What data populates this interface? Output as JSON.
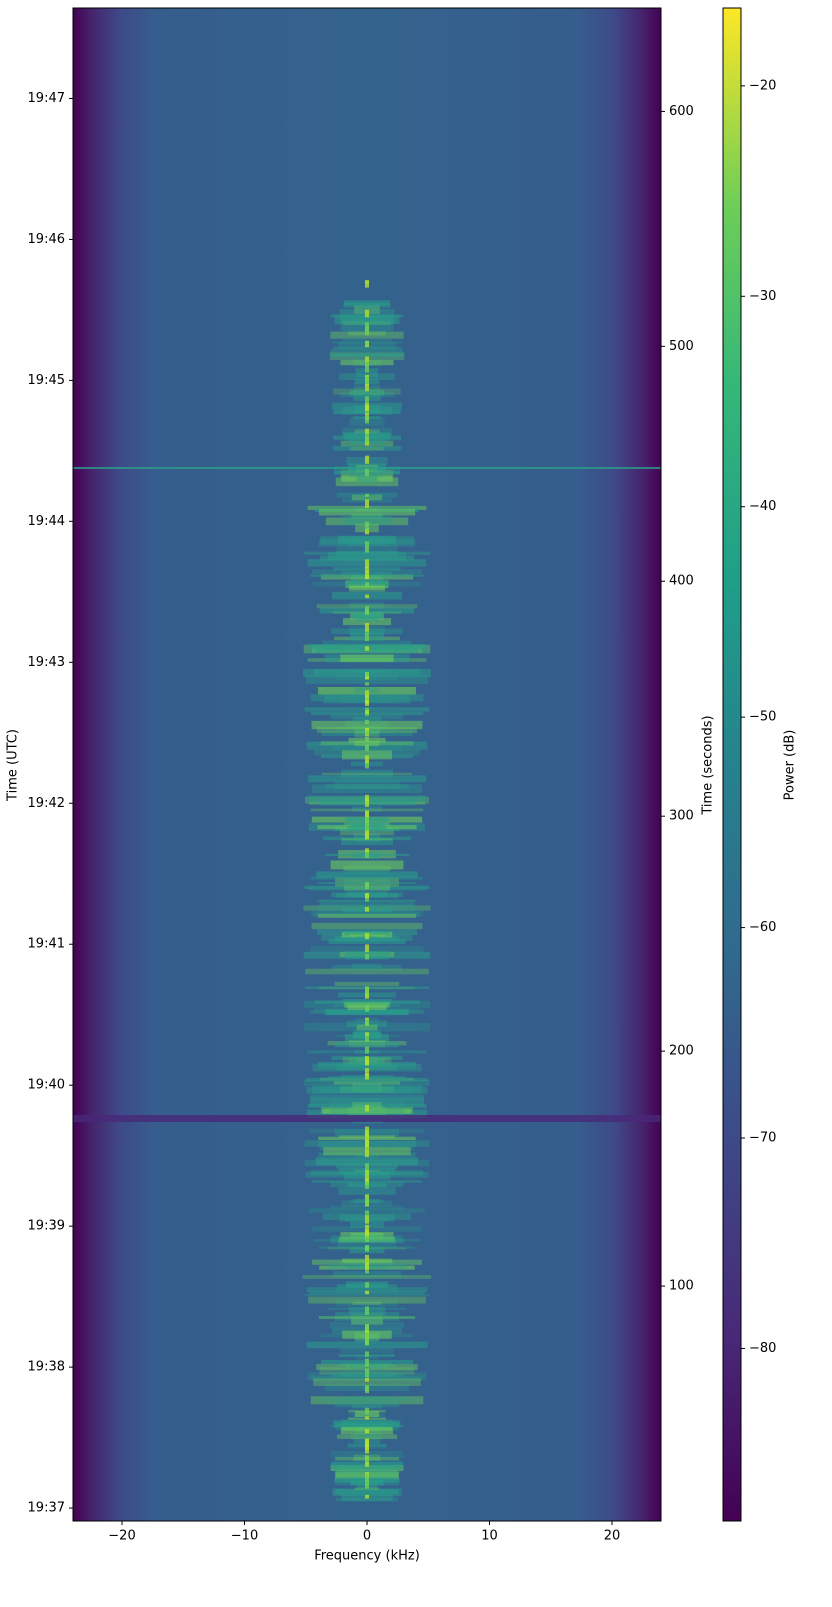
{
  "chart_data": {
    "type": "spectrogram",
    "xlabel": "Frequency (kHz)",
    "ylabel": "Time (UTC)",
    "y2label": "Time (seconds)",
    "colorbar_label": "Power (dB)",
    "colormap": "viridis",
    "xlim": [
      -24,
      24
    ],
    "xticks": [
      {
        "value": -20,
        "label": "−20"
      },
      {
        "value": -10,
        "label": "−10"
      },
      0,
      10,
      20
    ],
    "ylim": [
      70614.5,
      71258.5
    ],
    "yticks": [
      {
        "value": 70620,
        "label": "19:37"
      },
      {
        "value": 70680,
        "label": "19:38"
      },
      {
        "value": 70740,
        "label": "19:39"
      },
      {
        "value": 70800,
        "label": "19:40"
      },
      {
        "value": 70860,
        "label": "19:41"
      },
      {
        "value": 70920,
        "label": "19:42"
      },
      {
        "value": 70980,
        "label": "19:43"
      },
      {
        "value": 71040,
        "label": "19:44"
      },
      {
        "value": 71100,
        "label": "19:45"
      },
      {
        "value": 71160,
        "label": "19:46"
      },
      {
        "value": 71220,
        "label": "19:47"
      }
    ],
    "y2lim": [
      0,
      644
    ],
    "y2ticks": [
      100,
      200,
      300,
      400,
      500,
      600
    ],
    "clim": [
      -88.2,
      -16.3
    ],
    "cticks": [
      {
        "value": -80,
        "label": "−80"
      },
      {
        "value": -70,
        "label": "−70"
      },
      {
        "value": -60,
        "label": "−60"
      },
      {
        "value": -50,
        "label": "−50"
      },
      {
        "value": -40,
        "label": "−40"
      },
      {
        "value": -30,
        "label": "−30"
      },
      {
        "value": -20,
        "label": "−20"
      }
    ]
  }
}
